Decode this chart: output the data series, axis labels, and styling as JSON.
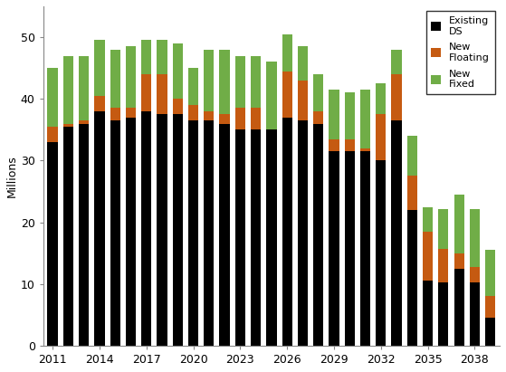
{
  "years": [
    2011,
    2012,
    2013,
    2014,
    2015,
    2016,
    2017,
    2018,
    2019,
    2020,
    2021,
    2022,
    2023,
    2024,
    2025,
    2026,
    2027,
    2028,
    2029,
    2030,
    2031,
    2032,
    2033,
    2034,
    2035,
    2036,
    2037,
    2038,
    2039
  ],
  "existing_ds": [
    33,
    35.5,
    36,
    38,
    36.5,
    37,
    38,
    37.5,
    37.5,
    36.5,
    36.5,
    36,
    35,
    35,
    35,
    37,
    36.5,
    36,
    31.5,
    31.5,
    31.5,
    30,
    36.5,
    22,
    10.5,
    10.2,
    12.5,
    10.2,
    4.5
  ],
  "new_floating": [
    2.5,
    0.5,
    0.5,
    2.5,
    2.0,
    1.5,
    6.0,
    6.5,
    2.5,
    2.5,
    1.5,
    1.5,
    3.5,
    3.5,
    0.0,
    7.5,
    6.5,
    2.0,
    2.0,
    2.0,
    0.5,
    7.5,
    7.5,
    5.5,
    8.0,
    5.5,
    2.5,
    2.5,
    3.5
  ],
  "new_fixed": [
    9.5,
    11,
    10.5,
    9,
    9.5,
    10,
    5.5,
    5.5,
    9,
    6,
    10,
    10.5,
    8.5,
    8.5,
    11,
    6,
    5.5,
    6,
    8,
    7.5,
    9.5,
    5,
    4,
    6.5,
    4,
    6.5,
    9.5,
    9.5,
    7.5
  ],
  "color_existing": "#000000",
  "color_floating": "#C55A11",
  "color_fixed": "#70AD47",
  "ylabel": "Millions",
  "ylim": [
    0,
    55
  ],
  "yticks": [
    0,
    10,
    20,
    30,
    40,
    50
  ],
  "xtick_years": [
    2011,
    2014,
    2017,
    2020,
    2023,
    2026,
    2029,
    2032,
    2035,
    2038
  ],
  "legend_labels": [
    "Existing\nDS",
    "New\nFloating",
    "New\nFixed"
  ],
  "background_color": "#ffffff"
}
